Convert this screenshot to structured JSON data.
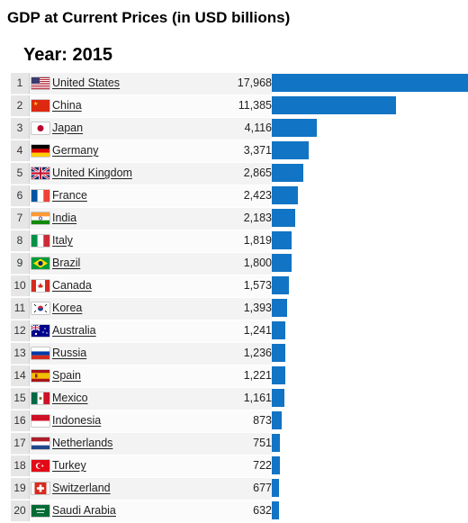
{
  "chart_data": {
    "type": "bar",
    "orientation": "horizontal",
    "title": "GDP at Current Prices (in USD billions)",
    "subtitle": "Year: 2015",
    "bar_color": "#1274c4",
    "max_value": 17968,
    "rows": [
      {
        "rank": "1",
        "country": "United States",
        "value": 17968,
        "value_label": "17,968",
        "flag": "us-flag-icon"
      },
      {
        "rank": "2",
        "country": "China",
        "value": 11385,
        "value_label": "11,385",
        "flag": "cn-flag-icon"
      },
      {
        "rank": "3",
        "country": "Japan",
        "value": 4116,
        "value_label": "4,116",
        "flag": "jp-flag-icon"
      },
      {
        "rank": "4",
        "country": "Germany",
        "value": 3371,
        "value_label": "3,371",
        "flag": "de-flag-icon"
      },
      {
        "rank": "5",
        "country": "United Kingdom",
        "value": 2865,
        "value_label": "2,865",
        "flag": "gb-flag-icon"
      },
      {
        "rank": "6",
        "country": "France",
        "value": 2423,
        "value_label": "2,423",
        "flag": "fr-flag-icon"
      },
      {
        "rank": "7",
        "country": "India",
        "value": 2183,
        "value_label": "2,183",
        "flag": "in-flag-icon"
      },
      {
        "rank": "8",
        "country": "Italy",
        "value": 1819,
        "value_label": "1,819",
        "flag": "it-flag-icon"
      },
      {
        "rank": "9",
        "country": "Brazil",
        "value": 1800,
        "value_label": "1,800",
        "flag": "br-flag-icon"
      },
      {
        "rank": "10",
        "country": "Canada",
        "value": 1573,
        "value_label": "1,573",
        "flag": "ca-flag-icon"
      },
      {
        "rank": "11",
        "country": "Korea",
        "value": 1393,
        "value_label": "1,393",
        "flag": "kr-flag-icon"
      },
      {
        "rank": "12",
        "country": "Australia",
        "value": 1241,
        "value_label": "1,241",
        "flag": "au-flag-icon"
      },
      {
        "rank": "13",
        "country": "Russia",
        "value": 1236,
        "value_label": "1,236",
        "flag": "ru-flag-icon"
      },
      {
        "rank": "14",
        "country": "Spain",
        "value": 1221,
        "value_label": "1,221",
        "flag": "es-flag-icon"
      },
      {
        "rank": "15",
        "country": "Mexico",
        "value": 1161,
        "value_label": "1,161",
        "flag": "mx-flag-icon"
      },
      {
        "rank": "16",
        "country": "Indonesia",
        "value": 873,
        "value_label": "873",
        "flag": "id-flag-icon"
      },
      {
        "rank": "17",
        "country": "Netherlands",
        "value": 751,
        "value_label": "751",
        "flag": "nl-flag-icon"
      },
      {
        "rank": "18",
        "country": "Turkey",
        "value": 722,
        "value_label": "722",
        "flag": "tr-flag-icon"
      },
      {
        "rank": "19",
        "country": "Switzerland",
        "value": 677,
        "value_label": "677",
        "flag": "ch-flag-icon"
      },
      {
        "rank": "20",
        "country": "Saudi Arabia",
        "value": 632,
        "value_label": "632",
        "flag": "sa-flag-icon"
      }
    ]
  }
}
